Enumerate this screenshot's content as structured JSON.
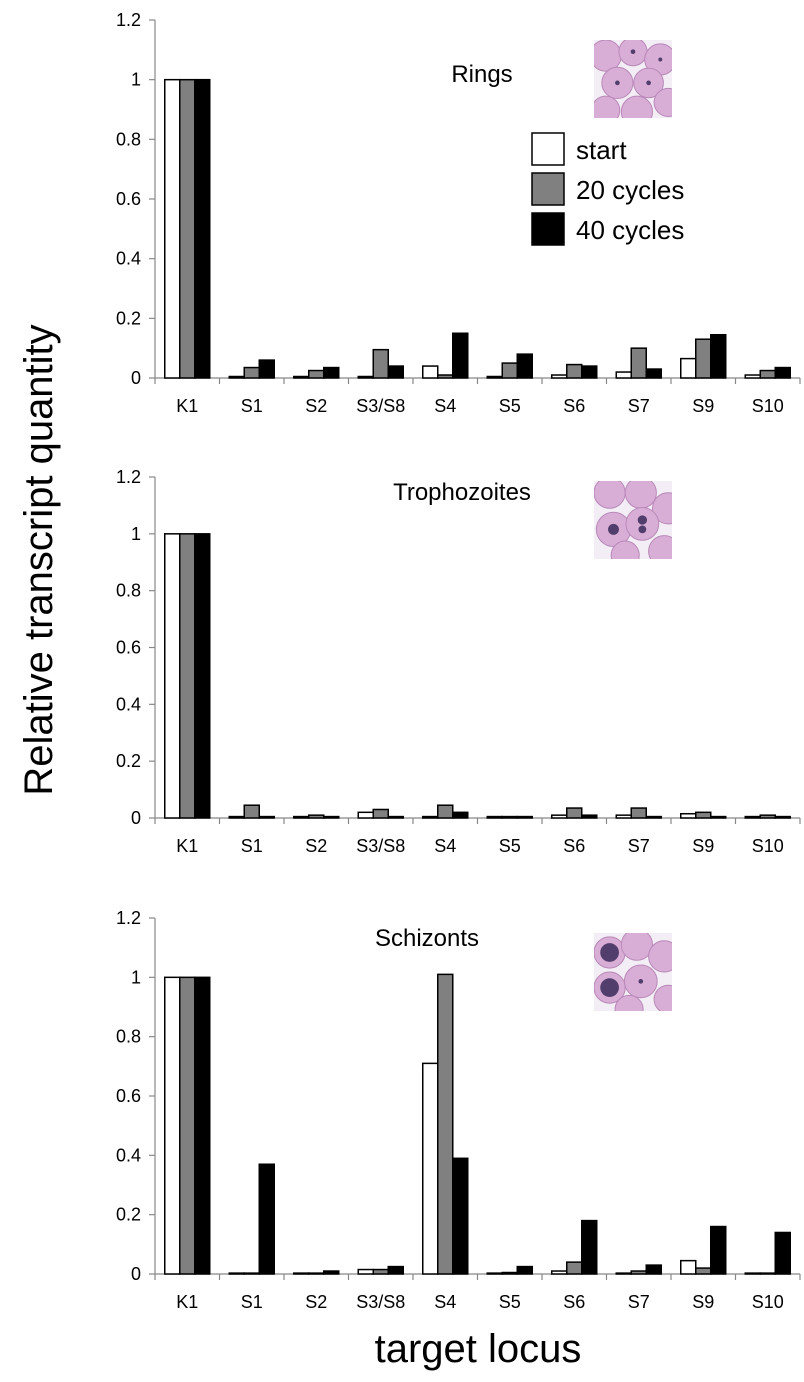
{
  "chart_data": [
    {
      "type": "bar",
      "title": "Rings",
      "categories": [
        "K1",
        "S1",
        "S2",
        "S3/S8",
        "S4",
        "S5",
        "S6",
        "S7",
        "S9",
        "S10"
      ],
      "series": [
        {
          "name": "start",
          "color": "#ffffff",
          "values": [
            1.0,
            0.005,
            0.005,
            0.005,
            0.04,
            0.005,
            0.01,
            0.02,
            0.065,
            0.01
          ]
        },
        {
          "name": "20 cycles",
          "color": "#808080",
          "values": [
            1.0,
            0.035,
            0.025,
            0.095,
            0.01,
            0.05,
            0.045,
            0.1,
            0.13,
            0.025
          ]
        },
        {
          "name": "40 cycles",
          "color": "#000000",
          "values": [
            1.0,
            0.06,
            0.035,
            0.04,
            0.15,
            0.08,
            0.04,
            0.03,
            0.145,
            0.035
          ]
        }
      ],
      "yticks": [
        "0",
        "0.2",
        "0.4",
        "0.6",
        "0.8",
        "1",
        "1.2"
      ],
      "ylim": [
        0,
        1.2
      ],
      "legend": "top-right",
      "grid": false,
      "micrograph": "ring-stage-micrograph"
    },
    {
      "type": "bar",
      "title": "Trophozoites",
      "categories": [
        "K1",
        "S1",
        "S2",
        "S3/S8",
        "S4",
        "S5",
        "S6",
        "S7",
        "S9",
        "S10"
      ],
      "series": [
        {
          "name": "start",
          "color": "#ffffff",
          "values": [
            1.0,
            0.005,
            0.005,
            0.02,
            0.005,
            0.005,
            0.01,
            0.01,
            0.015,
            0.005
          ]
        },
        {
          "name": "20 cycles",
          "color": "#808080",
          "values": [
            1.0,
            0.045,
            0.01,
            0.03,
            0.045,
            0.005,
            0.035,
            0.035,
            0.02,
            0.01
          ]
        },
        {
          "name": "40 cycles",
          "color": "#000000",
          "values": [
            1.0,
            0.005,
            0.005,
            0.005,
            0.02,
            0.005,
            0.01,
            0.005,
            0.005,
            0.005
          ]
        }
      ],
      "yticks": [
        "0",
        "0.2",
        "0.4",
        "0.6",
        "0.8",
        "1",
        "1.2"
      ],
      "ylim": [
        0,
        1.2
      ],
      "grid": false,
      "micrograph": "trophozoite-stage-micrograph"
    },
    {
      "type": "bar",
      "title": "Schizonts",
      "categories": [
        "K1",
        "S1",
        "S2",
        "S3/S8",
        "S4",
        "S5",
        "S6",
        "S7",
        "S9",
        "S10"
      ],
      "series": [
        {
          "name": "start",
          "color": "#ffffff",
          "values": [
            1.0,
            0.003,
            0.003,
            0.015,
            0.71,
            0.003,
            0.01,
            0.003,
            0.045,
            0.003
          ]
        },
        {
          "name": "20 cycles",
          "color": "#808080",
          "values": [
            1.0,
            0.003,
            0.003,
            0.015,
            1.01,
            0.005,
            0.04,
            0.01,
            0.02,
            0.003
          ]
        },
        {
          "name": "40 cycles",
          "color": "#000000",
          "values": [
            1.0,
            0.37,
            0.01,
            0.025,
            0.39,
            0.025,
            0.18,
            0.03,
            0.16,
            0.14
          ]
        }
      ],
      "yticks": [
        "0",
        "0.2",
        "0.4",
        "0.6",
        "0.8",
        "1",
        "1.2"
      ],
      "ylim": [
        0,
        1.2
      ],
      "grid": false,
      "micrograph": "schizont-stage-micrograph"
    }
  ],
  "axes": {
    "ylabel": "Relative transcript quantity",
    "xlabel": "target locus"
  },
  "legend": {
    "items": [
      {
        "label": "start",
        "color": "#ffffff"
      },
      {
        "label": "20 cycles",
        "color": "#808080"
      },
      {
        "label": "40 cycles",
        "color": "#000000"
      }
    ]
  },
  "colors": {
    "rbc": "#d9aed6",
    "rbc_edge": "#b888b8",
    "parasite": "#3a2a5a",
    "background": "#f3eef5"
  }
}
